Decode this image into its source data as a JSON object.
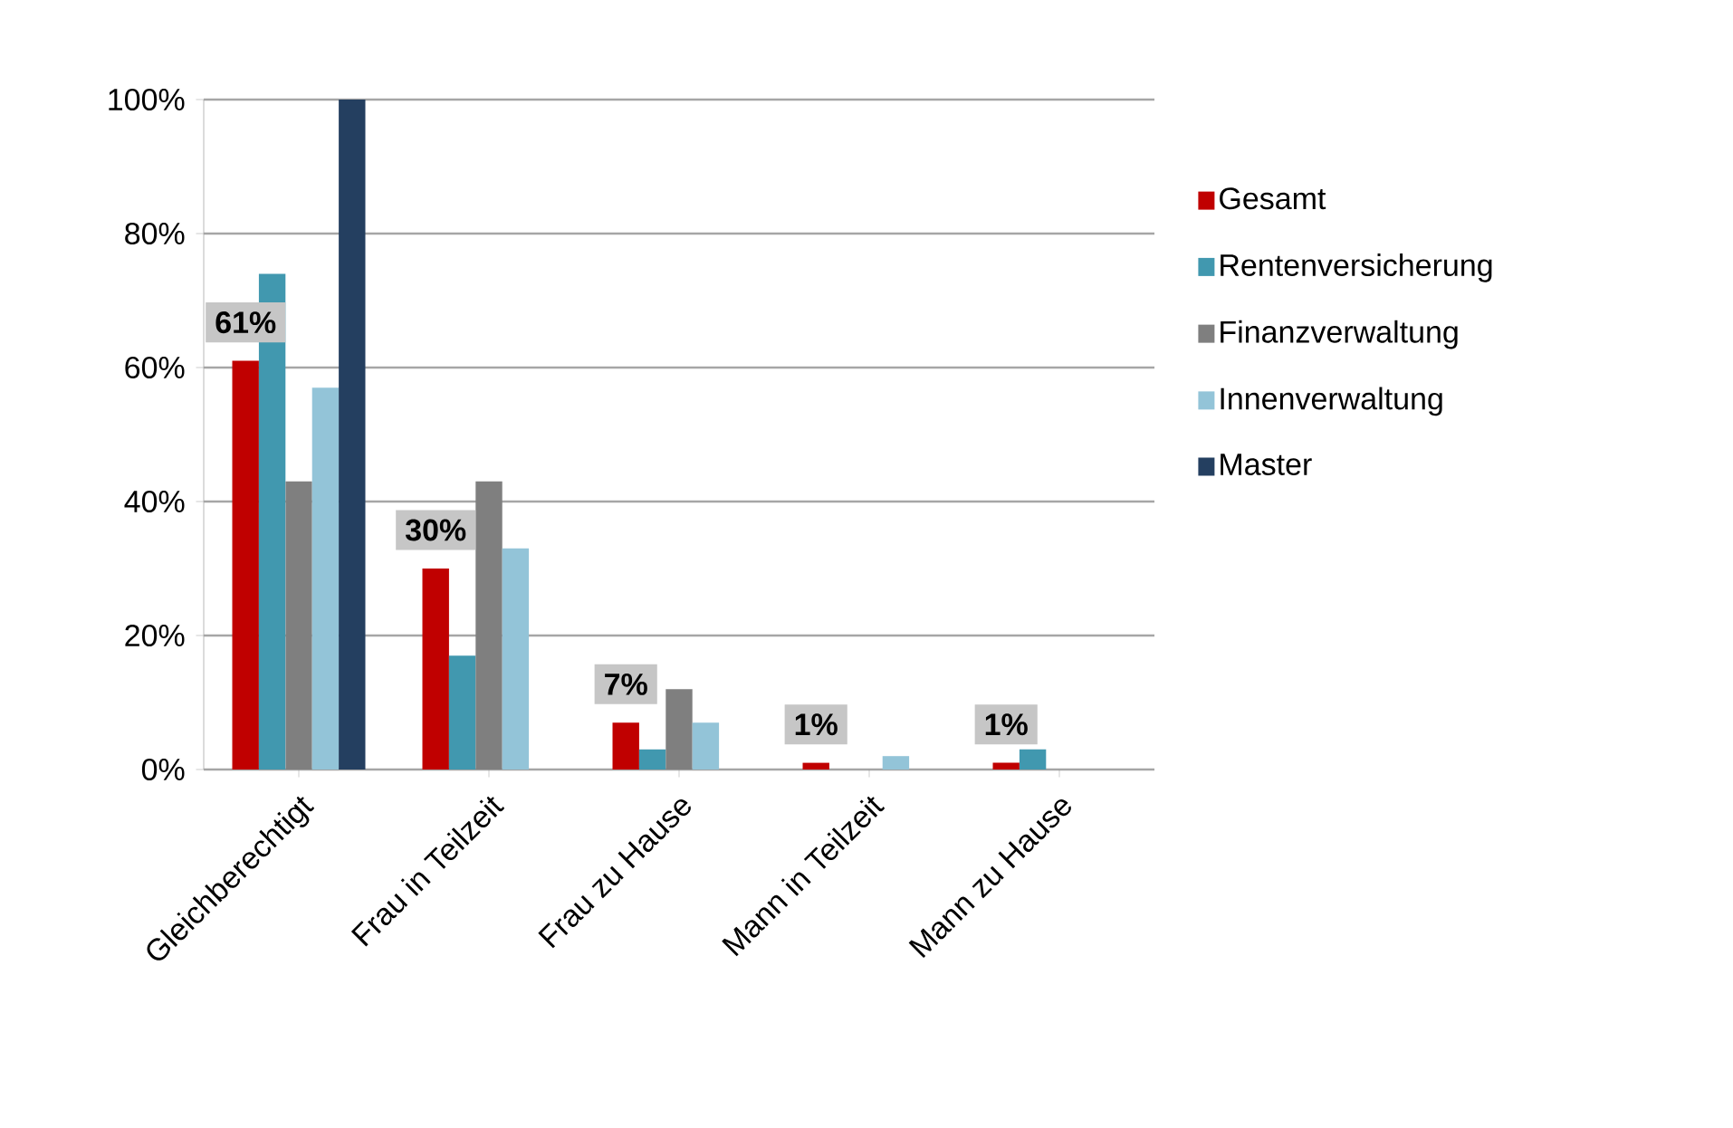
{
  "chart_data": {
    "type": "bar",
    "categories": [
      "Gleichberechtigt",
      "Frau in Teilzeit",
      "Frau zu Hause",
      "Mann in Teilzeit",
      "Mann zu Hause"
    ],
    "series": [
      {
        "name": "Gesamt",
        "color": "#c00000",
        "values": [
          61,
          30,
          7,
          1,
          1
        ],
        "value_labels": [
          "61%",
          "30%",
          "7%",
          "1%",
          "1%"
        ]
      },
      {
        "name": "Rentenversicherung",
        "color": "#4198af",
        "values": [
          74,
          17,
          3,
          0,
          3
        ]
      },
      {
        "name": "Finanzverwaltung",
        "color": "#7f7f7f",
        "values": [
          43,
          43,
          12,
          0,
          0
        ]
      },
      {
        "name": "Innenverwaltung",
        "color": "#93c4d8",
        "values": [
          57,
          33,
          7,
          2,
          0
        ]
      },
      {
        "name": "Master",
        "color": "#243f60",
        "values": [
          100,
          0,
          0,
          0,
          0
        ]
      }
    ],
    "ylim": [
      0,
      100
    ],
    "yticks": [
      {
        "value": 0,
        "label": "0%"
      },
      {
        "value": 20,
        "label": "20%"
      },
      {
        "value": 40,
        "label": "40%"
      },
      {
        "value": 60,
        "label": "60%"
      },
      {
        "value": 80,
        "label": "80%"
      },
      {
        "value": 100,
        "label": "100%"
      }
    ],
    "grid": "y",
    "legend": "right"
  }
}
